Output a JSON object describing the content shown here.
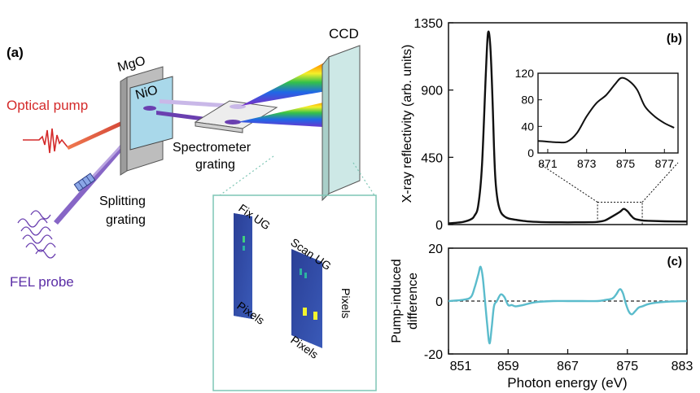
{
  "panel_a": {
    "label": "(a)",
    "crystal_outer": "MgO",
    "crystal_inner": "NiO",
    "pump": "Optical pump",
    "probe": "FEL probe",
    "splitter_line1": "Splitting",
    "splitter_line2": "grating",
    "spectro_line1": "Spectrometer",
    "spectro_line2": "grating",
    "detector": "CCD",
    "inset_fix": "Fix UG",
    "inset_scan": "Scan UG",
    "pixels": "Pixels",
    "colors": {
      "pump": "#d42a2a",
      "probe": "#6a3fb0",
      "crystal": "#a9d8ea",
      "ccd": "#cde8e6",
      "detector_frame": "#7fc6b5"
    }
  },
  "chart_data": [
    {
      "id": "b",
      "panel_label": "(b)",
      "type": "line",
      "xlabel": "",
      "ylabel": "X-ray reflectivity (arb. units)",
      "xlim": [
        851,
        883
      ],
      "ylim": [
        0,
        1350
      ],
      "yticks": [
        0,
        450,
        900,
        1350
      ],
      "x": [
        851,
        852,
        853,
        854,
        854.5,
        855,
        855.5,
        856,
        856.3,
        856.6,
        856.9,
        857.1,
        857.3,
        857.6,
        858,
        858.5,
        859,
        860,
        861,
        862,
        864,
        866,
        868,
        870,
        871,
        872,
        873,
        874,
        874.5,
        875,
        875.5,
        876,
        877,
        878,
        880,
        883
      ],
      "y": [
        8,
        12,
        18,
        35,
        60,
        130,
        400,
        1000,
        1280,
        1200,
        850,
        520,
        300,
        160,
        85,
        55,
        42,
        32,
        25,
        20,
        16,
        15,
        15,
        16,
        18,
        28,
        55,
        85,
        105,
        90,
        60,
        38,
        28,
        25,
        22,
        20
      ],
      "zoom_box": {
        "x": [
          871,
          877
        ],
        "y": [
          0,
          150
        ]
      },
      "inset": {
        "type": "line",
        "xlim": [
          870.5,
          877.7
        ],
        "ylim": [
          0,
          120
        ],
        "xticks": [
          871,
          873,
          875,
          877
        ],
        "yticks": [
          0,
          40,
          80,
          120
        ],
        "x": [
          870.5,
          871,
          871.5,
          872,
          872.5,
          873,
          873.5,
          874,
          874.5,
          874.8,
          875.2,
          875.6,
          876,
          876.5,
          877,
          877.5
        ],
        "y": [
          18,
          17,
          16,
          17,
          30,
          55,
          75,
          87,
          105,
          113,
          108,
          95,
          70,
          55,
          45,
          38
        ]
      },
      "colors": {
        "line": "#111111"
      }
    },
    {
      "id": "c",
      "panel_label": "(c)",
      "type": "line",
      "xlabel": "Photon energy (eV)",
      "ylabel_line1": "Pump-induced",
      "ylabel_line2": "difference",
      "xlim": [
        851,
        883
      ],
      "ylim": [
        -20,
        20
      ],
      "xticks": [
        851,
        859,
        867,
        875,
        883
      ],
      "yticks": [
        -20,
        0,
        20
      ],
      "x": [
        851,
        853,
        854,
        854.5,
        855,
        855.3,
        855.6,
        855.9,
        856.2,
        856.5,
        856.8,
        857.1,
        857.5,
        858,
        858.5,
        859,
        859.5,
        860,
        861,
        862,
        863,
        865,
        867,
        869,
        871,
        872,
        873,
        873.5,
        874,
        874.4,
        874.8,
        875.2,
        875.6,
        876,
        876.5,
        877,
        878,
        880,
        883
      ],
      "y": [
        0,
        0.5,
        1.5,
        5,
        10,
        13,
        9,
        0,
        -9,
        -16,
        -10,
        -2,
        0,
        2.5,
        1.5,
        -1.5,
        -1.5,
        -2,
        -1.5,
        -0.8,
        -0.3,
        0,
        0,
        0,
        0,
        0.4,
        1,
        2.5,
        4.5,
        3,
        -1,
        -4,
        -5,
        -4,
        -2.5,
        -2,
        -1,
        -0.3,
        0
      ],
      "colors": {
        "line": "#5bbccc",
        "zero_line": "#222222"
      }
    }
  ]
}
